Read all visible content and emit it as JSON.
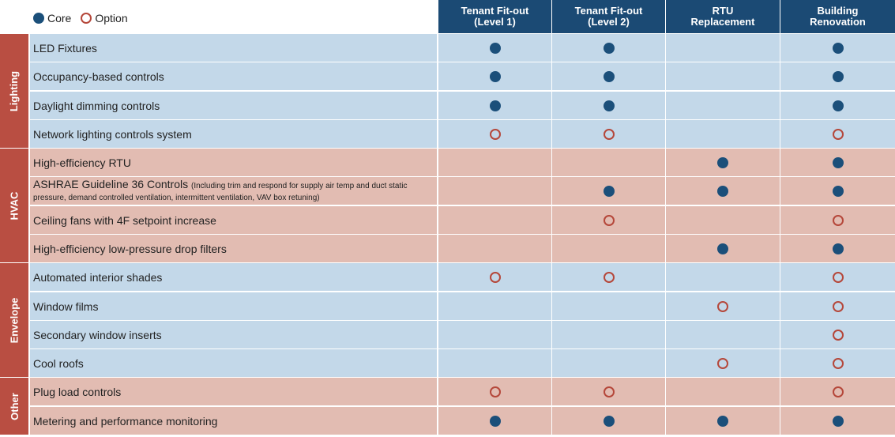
{
  "legend": {
    "core_label": "Core",
    "option_label": "Option"
  },
  "columns": [
    {
      "line1": "Tenant Fit-out",
      "line2": "(Level 1)"
    },
    {
      "line1": "Tenant Fit-out",
      "line2": "(Level 2)"
    },
    {
      "line1": "RTU",
      "line2": "Replacement"
    },
    {
      "line1": "Building",
      "line2": "Renovation"
    }
  ],
  "categories": [
    {
      "name": "Lighting",
      "rows": 4,
      "theme": "blue"
    },
    {
      "name": "HVAC",
      "rows": 4,
      "theme": "pink"
    },
    {
      "name": "Envelope",
      "rows": 4,
      "theme": "blue"
    },
    {
      "name": "Other",
      "rows": 2,
      "theme": "pink"
    }
  ],
  "rows": [
    {
      "label": "LED Fixtures",
      "marks": [
        "core",
        "core",
        "",
        "core"
      ]
    },
    {
      "label": "Occupancy-based controls",
      "marks": [
        "core",
        "core",
        "",
        "core"
      ]
    },
    {
      "label": "Daylight dimming controls",
      "marks": [
        "core",
        "core",
        "",
        "core"
      ]
    },
    {
      "label": "Network lighting controls system",
      "marks": [
        "option",
        "option",
        "",
        "option"
      ]
    },
    {
      "label": "High-efficiency RTU",
      "marks": [
        "",
        "",
        "core",
        "core"
      ]
    },
    {
      "label": "ASHRAE Guideline 36 Controls",
      "note": "(Including trim and respond for supply air temp and duct static pressure, demand controlled ventilation, intermittent ventilation, VAV box retuning)",
      "marks": [
        "",
        "core",
        "core",
        "core"
      ]
    },
    {
      "label": "Ceiling fans with 4F setpoint increase",
      "marks": [
        "",
        "option",
        "",
        "option"
      ]
    },
    {
      "label": "High-efficiency low-pressure drop filters",
      "marks": [
        "",
        "",
        "core",
        "core"
      ]
    },
    {
      "label": "Automated interior shades",
      "marks": [
        "option",
        "option",
        "",
        "option"
      ]
    },
    {
      "label": "Window films",
      "marks": [
        "",
        "",
        "option",
        "option"
      ]
    },
    {
      "label": "Secondary window inserts",
      "marks": [
        "",
        "",
        "",
        "option"
      ]
    },
    {
      "label": "Cool roofs",
      "marks": [
        "",
        "",
        "option",
        "option"
      ]
    },
    {
      "label": "Plug load controls",
      "marks": [
        "option",
        "option",
        "",
        "option"
      ]
    },
    {
      "label": "Metering and performance monitoring",
      "marks": [
        "core",
        "core",
        "core",
        "core"
      ]
    }
  ],
  "colors": {
    "header": "#1b4a74",
    "category": "#b94e42",
    "row_blue": "#c3d8e9",
    "row_pink": "#e2bcb2",
    "core": "#1b4f7a",
    "option": "#b5473a"
  }
}
